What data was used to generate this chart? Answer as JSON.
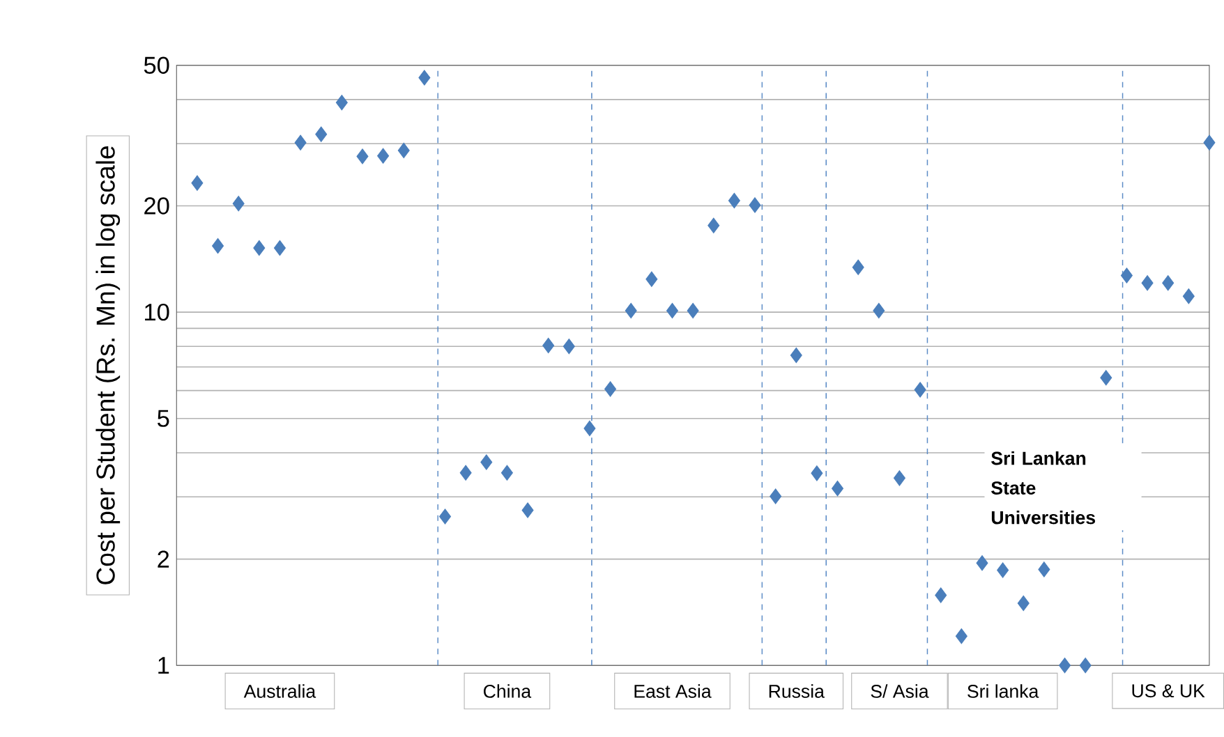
{
  "chart_data": {
    "type": "scatter",
    "ylabel": "Cost per Student (Rs. Mn)  in log scale",
    "log": "y",
    "grid": true,
    "marker": "diamond",
    "color": "#4a7ebb",
    "categories": [
      null,
      null,
      null,
      null,
      "Australia",
      null,
      null,
      null,
      null,
      null,
      null,
      null,
      null,
      null,
      null,
      "China",
      null,
      null,
      null,
      null,
      null,
      null,
      null,
      "East Asia",
      null,
      null,
      null,
      null,
      null,
      "Russia",
      null,
      null,
      null,
      null,
      "S/ Asia",
      null,
      null,
      null,
      null,
      "Sri  lanka",
      null,
      null,
      null,
      null,
      null,
      null,
      null,
      "US & UK",
      null,
      null
    ],
    "values": [
      23.2,
      15.4,
      20.3,
      15.2,
      15.2,
      30.2,
      31.9,
      39.2,
      27.6,
      27.7,
      28.7,
      46.1,
      2.64,
      3.51,
      3.76,
      3.51,
      2.75,
      8.05,
      8.0,
      4.69,
      6.06,
      10.1,
      12.4,
      10.1,
      10.1,
      17.6,
      20.7,
      20.1,
      3.01,
      7.55,
      3.5,
      3.17,
      13.4,
      10.1,
      3.39,
      6.03,
      1.58,
      1.21,
      1.95,
      1.86,
      1.5,
      1.87,
      1.0,
      1.0,
      6.52,
      12.7,
      12.1,
      12.1,
      11.1,
      30.2
    ],
    "ylim": [
      1,
      50
    ],
    "yticks": [
      1,
      2,
      {
        "value": 3,
        "label": null
      },
      {
        "value": 4,
        "label": null
      },
      5,
      {
        "value": 6,
        "label": null
      },
      {
        "value": 7,
        "label": null
      },
      {
        "value": 8,
        "label": null
      },
      {
        "value": 9,
        "label": null
      },
      10,
      20,
      {
        "value": 30,
        "label": null
      },
      {
        "value": 40,
        "label": null
      },
      50
    ],
    "annotations": [
      "Sri Lankan State Universities"
    ]
  }
}
